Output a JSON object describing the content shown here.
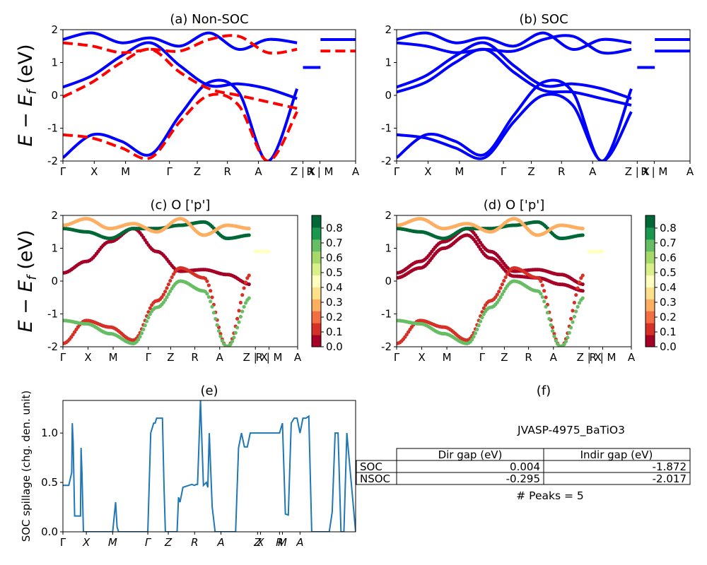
{
  "figure": {
    "ylabel_energy_main": "E − E",
    "ylabel_energy_sub": "f",
    "ylabel_energy_units": " (eV)",
    "colorbar_ticks": [
      "0.0",
      "0.1",
      "0.2",
      "0.3",
      "0.4",
      "0.5",
      "0.6",
      "0.7",
      "0.8"
    ],
    "colors": {
      "nonsoc_band": "#0000ff",
      "soc_band_dashed": "#ff0000",
      "spillage_line": "#1f77b4",
      "colormap": [
        "#a50026",
        "#d73027",
        "#f46d43",
        "#fdae61",
        "#fee08b",
        "#ffffbf",
        "#d9ef8b",
        "#a6d96a",
        "#66bd63",
        "#1a9850",
        "#006837"
      ]
    }
  },
  "table": {
    "title": "JVASP-4975_BaTiO3",
    "header": [
      "",
      "Dir gap (eV)",
      "Indir gap (eV)"
    ],
    "rows": [
      [
        "SOC",
        "0.004",
        "-1.872"
      ],
      [
        "NSOC",
        "-0.295",
        "-2.017"
      ]
    ],
    "footer": "# Peaks = 5"
  },
  "chart_data": [
    {
      "id": "a",
      "type": "line",
      "title": "(a) Non-SOC",
      "ylim": [
        -2,
        2
      ],
      "yticks": [
        -2,
        -1,
        0,
        1,
        2
      ],
      "xticks": [
        "Γ",
        "X",
        "M",
        "Γ",
        "Z",
        "R",
        "A",
        "Z | X",
        "R | M",
        "A"
      ],
      "xtick_pos": [
        0,
        0.107,
        0.214,
        0.364,
        0.459,
        0.562,
        0.668,
        0.82,
        0.878,
        1.0
      ],
      "series": [
        {
          "style": "solid",
          "color": "#0000ff",
          "x": [
            0,
            0.1,
            0.2,
            0.3,
            0.4,
            0.5,
            0.6,
            0.7,
            0.8
          ],
          "y": [
            0.25,
            0.6,
            1.2,
            1.6,
            0.9,
            0.3,
            0.35,
            0.2,
            -0.1
          ]
        },
        {
          "style": "solid",
          "color": "#0000ff",
          "x": [
            0,
            0.1,
            0.2,
            0.3,
            0.4,
            0.5,
            0.6,
            0.7,
            0.8
          ],
          "y": [
            -1.9,
            -1.2,
            -1.4,
            -1.8,
            -0.6,
            0.4,
            0.1,
            -2.0,
            0.2
          ]
        },
        {
          "style": "solid",
          "color": "#0000ff",
          "x": [
            0,
            0.1,
            0.2,
            0.3,
            0.4,
            0.5,
            0.6,
            0.7,
            0.8
          ],
          "y": [
            1.7,
            1.9,
            1.6,
            1.75,
            1.5,
            1.9,
            1.4,
            1.7,
            1.6
          ]
        },
        {
          "style": "dashed",
          "color": "#ff0000",
          "x": [
            0,
            0.1,
            0.2,
            0.3,
            0.4,
            0.5,
            0.6,
            0.7,
            0.8
          ],
          "y": [
            -0.05,
            0.4,
            1.0,
            1.4,
            0.7,
            0.2,
            0.0,
            -0.2,
            -0.4
          ]
        },
        {
          "style": "dashed",
          "color": "#ff0000",
          "x": [
            0,
            0.1,
            0.2,
            0.3,
            0.4,
            0.5,
            0.6,
            0.7,
            0.8
          ],
          "y": [
            -1.2,
            -1.3,
            -1.6,
            -1.9,
            -0.8,
            0.0,
            -0.3,
            -2.0,
            -0.5
          ]
        },
        {
          "style": "dashed",
          "color": "#ff0000",
          "x": [
            0,
            0.1,
            0.2,
            0.3,
            0.4,
            0.5,
            0.6,
            0.7,
            0.8
          ],
          "y": [
            1.6,
            1.5,
            1.3,
            1.4,
            1.35,
            1.7,
            1.8,
            1.3,
            1.4
          ]
        },
        {
          "style": "dashed",
          "color": "#ff0000",
          "x": [
            0.88,
            1.0
          ],
          "y": [
            1.35,
            1.35
          ]
        },
        {
          "style": "solid",
          "color": "#0000ff",
          "x": [
            0.88,
            1.0
          ],
          "y": [
            1.7,
            1.7
          ]
        },
        {
          "style": "solid",
          "color": "#0000ff",
          "x": [
            0.82,
            0.88
          ],
          "y": [
            0.85,
            0.85
          ]
        }
      ]
    },
    {
      "id": "b",
      "type": "line",
      "title": "(b) SOC",
      "ylim": [
        -2,
        2
      ],
      "yticks": [
        -2,
        -1,
        0,
        1,
        2
      ],
      "xticks": [
        "Γ",
        "X",
        "M",
        "Γ",
        "Z",
        "R",
        "A",
        "Z | X",
        "R | M",
        "A"
      ],
      "xtick_pos": [
        0,
        0.107,
        0.214,
        0.364,
        0.459,
        0.562,
        0.668,
        0.82,
        0.878,
        1.0
      ],
      "series": [
        {
          "style": "solid",
          "color": "#0000ff",
          "x": [
            0,
            0.1,
            0.2,
            0.3,
            0.4,
            0.5,
            0.6,
            0.7,
            0.8
          ],
          "y": [
            0.25,
            0.6,
            1.2,
            1.6,
            0.9,
            0.3,
            0.35,
            0.2,
            -0.1
          ]
        },
        {
          "style": "solid",
          "color": "#0000ff",
          "x": [
            0,
            0.1,
            0.2,
            0.3,
            0.4,
            0.5,
            0.6,
            0.7,
            0.8
          ],
          "y": [
            0.1,
            0.4,
            1.0,
            1.4,
            0.7,
            0.15,
            0.1,
            -0.1,
            -0.3
          ]
        },
        {
          "style": "solid",
          "color": "#0000ff",
          "x": [
            0,
            0.1,
            0.2,
            0.3,
            0.4,
            0.5,
            0.6,
            0.7,
            0.8
          ],
          "y": [
            -1.9,
            -1.2,
            -1.4,
            -1.8,
            -0.6,
            0.4,
            0.1,
            -2.0,
            0.2
          ]
        },
        {
          "style": "solid",
          "color": "#0000ff",
          "x": [
            0,
            0.1,
            0.2,
            0.3,
            0.4,
            0.5,
            0.6,
            0.7,
            0.8
          ],
          "y": [
            -1.2,
            -1.3,
            -1.6,
            -1.9,
            -0.8,
            0.0,
            -0.3,
            -2.0,
            -0.5
          ]
        },
        {
          "style": "solid",
          "color": "#0000ff",
          "x": [
            0,
            0.1,
            0.2,
            0.3,
            0.4,
            0.5,
            0.6,
            0.7,
            0.8
          ],
          "y": [
            1.7,
            1.9,
            1.6,
            1.75,
            1.5,
            1.9,
            1.4,
            1.7,
            1.6
          ]
        },
        {
          "style": "solid",
          "color": "#0000ff",
          "x": [
            0,
            0.1,
            0.2,
            0.3,
            0.4,
            0.5,
            0.6,
            0.7,
            0.8
          ],
          "y": [
            1.6,
            1.5,
            1.3,
            1.4,
            1.35,
            1.7,
            1.8,
            1.3,
            1.4
          ]
        },
        {
          "style": "solid",
          "color": "#0000ff",
          "x": [
            0.88,
            1.0
          ],
          "y": [
            1.7,
            1.7
          ]
        },
        {
          "style": "solid",
          "color": "#0000ff",
          "x": [
            0.88,
            1.0
          ],
          "y": [
            1.35,
            1.35
          ]
        },
        {
          "style": "solid",
          "color": "#0000ff",
          "x": [
            0.82,
            0.88
          ],
          "y": [
            0.85,
            0.85
          ]
        }
      ]
    },
    {
      "id": "c",
      "type": "scatter",
      "title": "(c)  O ['p']",
      "ylim": [
        -2,
        2
      ],
      "yticks": [
        -2,
        -1,
        0,
        1,
        2
      ],
      "xticks": [
        "Γ",
        "X",
        "M",
        "Γ",
        "Z",
        "R",
        "A",
        "Z | X",
        "R | M",
        "A"
      ],
      "xtick_pos": [
        0,
        0.107,
        0.214,
        0.364,
        0.459,
        0.562,
        0.668,
        0.82,
        0.878,
        1.0
      ],
      "colorbar_range": [
        0.0,
        0.85
      ],
      "series": [
        {
          "name": "",
          "weight": 0.0,
          "x": [
            0,
            0.1,
            0.2,
            0.3,
            0.4,
            0.5,
            0.6,
            0.7,
            0.8
          ],
          "y": [
            0.25,
            0.6,
            1.2,
            1.6,
            0.9,
            0.3,
            0.35,
            0.2,
            -0.1
          ]
        },
        {
          "name": "",
          "weight": 0.05,
          "x": [
            0,
            0.1,
            0.2,
            0.3,
            0.4,
            0.5,
            0.6,
            0.7,
            0.8
          ],
          "y": [
            -1.9,
            -1.2,
            -1.4,
            -1.8,
            -0.6,
            0.4,
            0.1,
            -2.0,
            0.2
          ]
        },
        {
          "name": "",
          "weight": 0.7,
          "x": [
            0,
            0.1,
            0.2,
            0.3,
            0.4,
            0.5,
            0.6,
            0.7,
            0.8
          ],
          "y": [
            -1.2,
            -1.3,
            -1.6,
            -1.9,
            -0.8,
            0.0,
            -0.3,
            -2.0,
            -0.5
          ]
        },
        {
          "name": "",
          "weight": 0.85,
          "x": [
            0,
            0.1,
            0.2,
            0.3,
            0.4,
            0.5,
            0.6,
            0.7,
            0.8
          ],
          "y": [
            1.6,
            1.5,
            1.3,
            1.6,
            1.6,
            1.7,
            1.8,
            1.3,
            1.4
          ]
        },
        {
          "name": "",
          "weight": 0.25,
          "x": [
            0,
            0.1,
            0.2,
            0.3,
            0.4,
            0.5,
            0.6,
            0.7,
            0.8
          ],
          "y": [
            1.7,
            1.9,
            1.6,
            1.75,
            1.5,
            1.9,
            1.4,
            1.7,
            1.6
          ]
        },
        {
          "name": "",
          "weight": 0.4,
          "x": [
            0.82,
            0.88
          ],
          "y": [
            0.9,
            0.9
          ]
        }
      ]
    },
    {
      "id": "d",
      "type": "scatter",
      "title": "(d) O ['p']",
      "ylim": [
        -2,
        2
      ],
      "yticks": [
        -2,
        -1,
        0,
        1,
        2
      ],
      "xticks": [
        "Γ",
        "X",
        "M",
        "Γ",
        "Z",
        "R",
        "A",
        "Z | X",
        "R | M",
        "A"
      ],
      "xtick_pos": [
        0,
        0.107,
        0.214,
        0.364,
        0.459,
        0.562,
        0.668,
        0.82,
        0.878,
        1.0
      ],
      "colorbar_range": [
        0.0,
        0.85
      ],
      "series": [
        {
          "name": "",
          "weight": 0.0,
          "x": [
            0,
            0.1,
            0.2,
            0.3,
            0.4,
            0.5,
            0.6,
            0.7,
            0.8
          ],
          "y": [
            0.25,
            0.6,
            1.2,
            1.6,
            0.9,
            0.3,
            0.35,
            0.2,
            -0.1
          ]
        },
        {
          "name": "",
          "weight": 0.0,
          "x": [
            0,
            0.1,
            0.2,
            0.3,
            0.4,
            0.5,
            0.6,
            0.7,
            0.8
          ],
          "y": [
            0.1,
            0.4,
            1.0,
            1.4,
            0.7,
            0.15,
            0.1,
            -0.1,
            -0.3
          ]
        },
        {
          "name": "",
          "weight": 0.05,
          "x": [
            0,
            0.1,
            0.2,
            0.3,
            0.4,
            0.5,
            0.6,
            0.7,
            0.8
          ],
          "y": [
            -1.9,
            -1.2,
            -1.4,
            -1.8,
            -0.6,
            0.4,
            0.1,
            -2.0,
            0.2
          ]
        },
        {
          "name": "",
          "weight": 0.7,
          "x": [
            0,
            0.1,
            0.2,
            0.3,
            0.4,
            0.5,
            0.6,
            0.7,
            0.8
          ],
          "y": [
            -1.2,
            -1.3,
            -1.6,
            -1.9,
            -0.8,
            0.0,
            -0.3,
            -2.0,
            -0.5
          ]
        },
        {
          "name": "",
          "weight": 0.85,
          "x": [
            0,
            0.1,
            0.2,
            0.3,
            0.4,
            0.5,
            0.6,
            0.7,
            0.8
          ],
          "y": [
            1.6,
            1.5,
            1.3,
            1.6,
            1.6,
            1.7,
            1.8,
            1.3,
            1.4
          ]
        },
        {
          "name": "",
          "weight": 0.25,
          "x": [
            0,
            0.1,
            0.2,
            0.3,
            0.4,
            0.5,
            0.6,
            0.7,
            0.8
          ],
          "y": [
            1.7,
            1.9,
            1.6,
            1.75,
            1.5,
            1.9,
            1.4,
            1.7,
            1.6
          ]
        },
        {
          "name": "",
          "weight": 0.4,
          "x": [
            0.82,
            0.88
          ],
          "y": [
            0.9,
            0.9
          ]
        }
      ]
    },
    {
      "id": "e",
      "type": "line",
      "title": "(e)",
      "ylabel": "SOC spillage (chg. den. unit)",
      "ylim": [
        0,
        1.33
      ],
      "yticks": [
        0.0,
        0.5,
        1.0
      ],
      "ytick_labels": [
        "0.0",
        "0.5",
        "1.0"
      ],
      "xticks": [
        "Γ",
        "X",
        "M",
        "Γ",
        "Z",
        "R",
        "A",
        "Z",
        "X",
        "R",
        "M",
        "A"
      ],
      "xtick_pos": [
        0,
        0.08,
        0.17,
        0.29,
        0.36,
        0.45,
        0.54,
        0.665,
        0.675,
        0.74,
        0.75,
        0.81
      ],
      "series": [
        {
          "name": "",
          "color": "#1f77b4",
          "x": [
            0,
            0.02,
            0.03,
            0.032,
            0.035,
            0.04,
            0.05,
            0.055,
            0.06,
            0.062,
            0.065,
            0.07,
            0.08,
            0.09,
            0.1,
            0.11,
            0.12,
            0.13,
            0.14,
            0.15,
            0.16,
            0.17,
            0.18,
            0.185,
            0.19,
            0.2,
            0.25,
            0.29,
            0.3,
            0.31,
            0.315,
            0.32,
            0.33,
            0.34,
            0.345,
            0.35,
            0.36,
            0.37,
            0.39,
            0.395,
            0.4,
            0.41,
            0.43,
            0.44,
            0.45,
            0.455,
            0.46,
            0.47,
            0.48,
            0.49,
            0.495,
            0.5,
            0.51,
            0.52,
            0.53,
            0.54,
            0.55,
            0.56,
            0.57,
            0.58,
            0.59,
            0.6,
            0.61,
            0.62,
            0.63,
            0.64,
            0.65,
            0.66,
            0.67,
            0.68,
            0.69,
            0.7,
            0.71,
            0.72,
            0.73,
            0.74,
            0.75,
            0.76,
            0.77,
            0.78,
            0.79,
            0.8,
            0.81,
            0.82,
            0.83,
            0.84,
            0.85,
            0.88,
            0.9,
            0.91,
            0.92,
            0.93,
            0.94,
            0.95,
            0.96,
            0.97,
            1.0
          ],
          "y": [
            0.47,
            0.47,
            0.6,
            1.1,
            0.9,
            0.16,
            0.16,
            0.16,
            0.16,
            0.85,
            0.6,
            0.0,
            0.0,
            0.0,
            0.0,
            0.0,
            0.0,
            0.0,
            0.0,
            0.0,
            0.0,
            0.0,
            0.3,
            0.05,
            0.0,
            0.0,
            0.0,
            0.0,
            1.0,
            1.1,
            1.1,
            1.15,
            1.15,
            1.15,
            0.5,
            0.0,
            0.0,
            0.0,
            0.0,
            0.35,
            0.3,
            0.45,
            0.47,
            0.48,
            0.47,
            0.48,
            0.48,
            1.33,
            0.47,
            0.5,
            0.45,
            1.0,
            0.25,
            0.0,
            0.0,
            0.0,
            0.0,
            0.0,
            0.0,
            0.0,
            0.0,
            0.85,
            1.0,
            0.86,
            0.86,
            1.0,
            1.0,
            1.0,
            1.0,
            1.0,
            1.0,
            1.0,
            1.0,
            1.0,
            1.0,
            1.0,
            1.1,
            0.18,
            0.17,
            1.1,
            1.15,
            1.15,
            1.0,
            1.15,
            1.15,
            1.17,
            0.0,
            0.0,
            0.0,
            0.0,
            0.2,
            1.0,
            1.0,
            0.0,
            0.0,
            1.0,
            0.0
          ]
        }
      ]
    }
  ]
}
